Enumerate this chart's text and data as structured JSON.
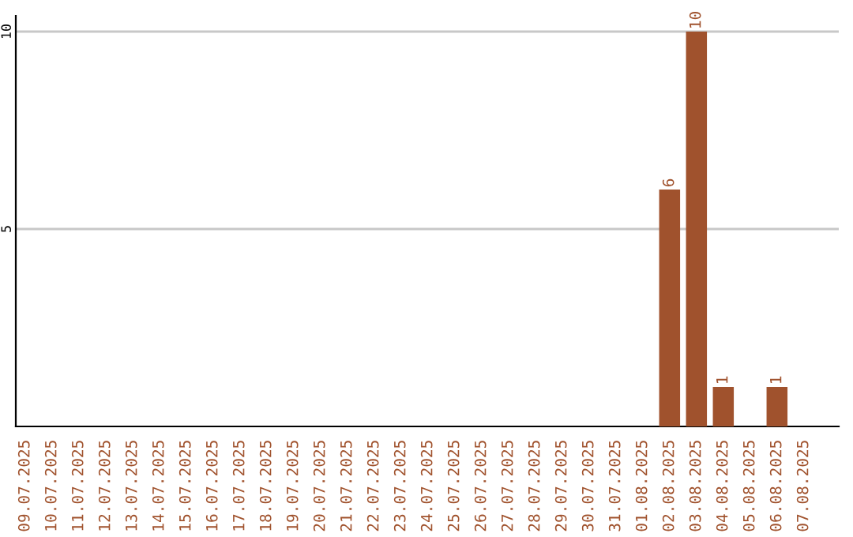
{
  "chart_data": {
    "type": "bar",
    "categories": [
      "09.07.2025",
      "10.07.2025",
      "11.07.2025",
      "12.07.2025",
      "13.07.2025",
      "14.07.2025",
      "15.07.2025",
      "16.07.2025",
      "17.07.2025",
      "18.07.2025",
      "19.07.2025",
      "20.07.2025",
      "21.07.2025",
      "22.07.2025",
      "23.07.2025",
      "24.07.2025",
      "25.07.2025",
      "26.07.2025",
      "27.07.2025",
      "28.07.2025",
      "29.07.2025",
      "30.07.2025",
      "31.07.2025",
      "01.08.2025",
      "02.08.2025",
      "03.08.2025",
      "04.08.2025",
      "05.08.2025",
      "06.08.2025",
      "07.08.2025"
    ],
    "values": [
      0,
      0,
      0,
      0,
      0,
      0,
      0,
      0,
      0,
      0,
      0,
      0,
      0,
      0,
      0,
      0,
      0,
      0,
      0,
      0,
      0,
      0,
      0,
      0,
      6,
      10,
      1,
      0,
      1,
      0
    ],
    "value_labels": [
      null,
      null,
      null,
      null,
      null,
      null,
      null,
      null,
      null,
      null,
      null,
      null,
      null,
      null,
      null,
      null,
      null,
      null,
      null,
      null,
      null,
      null,
      null,
      null,
      "6",
      "10",
      "1",
      null,
      "1",
      null
    ],
    "color": "#a0522d",
    "ylim": [
      0,
      10.4
    ],
    "yticks": [
      5,
      10
    ],
    "grid": "y"
  }
}
